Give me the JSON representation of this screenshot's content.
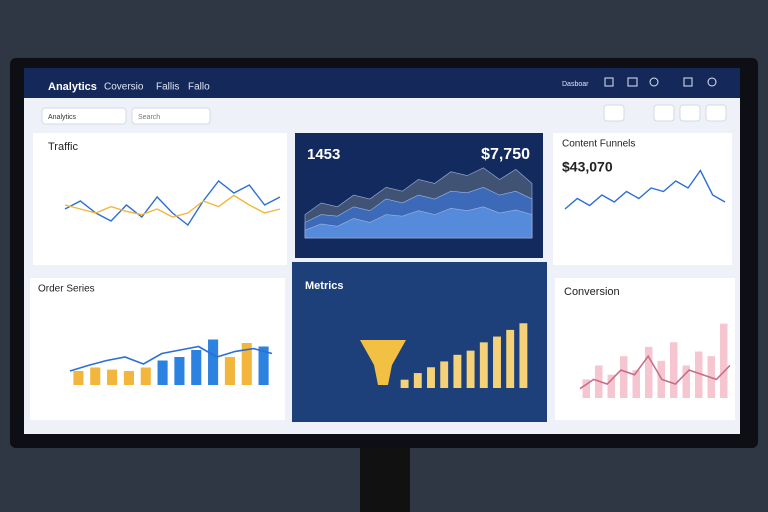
{
  "header": {
    "nav": [
      "Analytics",
      "Coversio",
      "Fallis",
      "Fallo"
    ],
    "right": "Dasboar"
  },
  "toolbar": {
    "dropdown": "Analytics",
    "search": "Search"
  },
  "traffic": {
    "title": "Traffic",
    "type": "line",
    "ylim": [
      0,
      100
    ],
    "series": [
      {
        "color": "#2b6fd6",
        "values": [
          45,
          55,
          40,
          30,
          50,
          35,
          60,
          40,
          25,
          55,
          80,
          65,
          75,
          50,
          60
        ]
      },
      {
        "color": "#f2b63c",
        "values": [
          50,
          45,
          40,
          48,
          42,
          38,
          45,
          35,
          40,
          55,
          48,
          62,
          50,
          40,
          45
        ]
      }
    ]
  },
  "kpi": {
    "value_left": "1453",
    "value_right": "$7,750",
    "type": "area",
    "ylim": [
      0,
      100
    ],
    "series": [
      {
        "color": "#4a5a78",
        "values": [
          30,
          45,
          40,
          55,
          50,
          65,
          60,
          75,
          70,
          85,
          80,
          90,
          75,
          88,
          70
        ]
      },
      {
        "color": "#3d6fc4",
        "values": [
          20,
          30,
          28,
          40,
          35,
          50,
          45,
          55,
          50,
          60,
          58,
          65,
          55,
          60,
          50
        ]
      },
      {
        "color": "#5b8fe0",
        "values": [
          10,
          18,
          15,
          25,
          20,
          30,
          28,
          35,
          30,
          38,
          35,
          40,
          32,
          36,
          30
        ]
      }
    ]
  },
  "content": {
    "title": "Content Funnels",
    "value": "$43,070",
    "type": "line",
    "ylim": [
      0,
      100
    ],
    "color": "#2b6fd6",
    "values": [
      30,
      45,
      35,
      50,
      40,
      55,
      45,
      60,
      55,
      70,
      60,
      85,
      50,
      40
    ]
  },
  "orders": {
    "title": "Order Series",
    "type": "bar-line",
    "ylim": [
      0,
      100
    ],
    "bars": [
      20,
      25,
      22,
      20,
      25,
      35,
      40,
      50,
      65,
      40,
      60,
      55
    ],
    "colors": [
      "#f2b63c",
      "#f2b63c",
      "#f2b63c",
      "#f2b63c",
      "#f2b63c",
      "#2b82e0",
      "#2b82e0",
      "#2b82e0",
      "#2b82e0",
      "#f2b63c",
      "#f2b63c",
      "#2b82e0"
    ],
    "line": [
      20,
      28,
      35,
      40,
      30,
      45,
      50,
      55,
      40,
      48,
      52,
      45
    ],
    "line_color": "#2b6fd6"
  },
  "metrics": {
    "title": "Metrics",
    "type": "bar",
    "ylim": [
      0,
      100
    ],
    "color": "#f5d278",
    "values": [
      10,
      18,
      25,
      32,
      40,
      45,
      55,
      62,
      70,
      78
    ]
  },
  "conversion": {
    "title": "Conversion",
    "type": "bar-line",
    "ylim": [
      0,
      100
    ],
    "bars": [
      20,
      35,
      25,
      45,
      30,
      55,
      40,
      60,
      35,
      50,
      45,
      80
    ],
    "colors": [
      "#f6c6d0",
      "#f6c6d0",
      "#f6c6d0",
      "#f6c6d0",
      "#f6c6d0",
      "#f6c6d0",
      "#f6c6d0",
      "#f6c6d0",
      "#f6c6d0",
      "#f6c6d0",
      "#f6c6d0",
      "#f6c6d0"
    ],
    "line": [
      10,
      20,
      15,
      30,
      25,
      45,
      20,
      15,
      30,
      25,
      20,
      35
    ],
    "line_color": "#c4708a"
  }
}
